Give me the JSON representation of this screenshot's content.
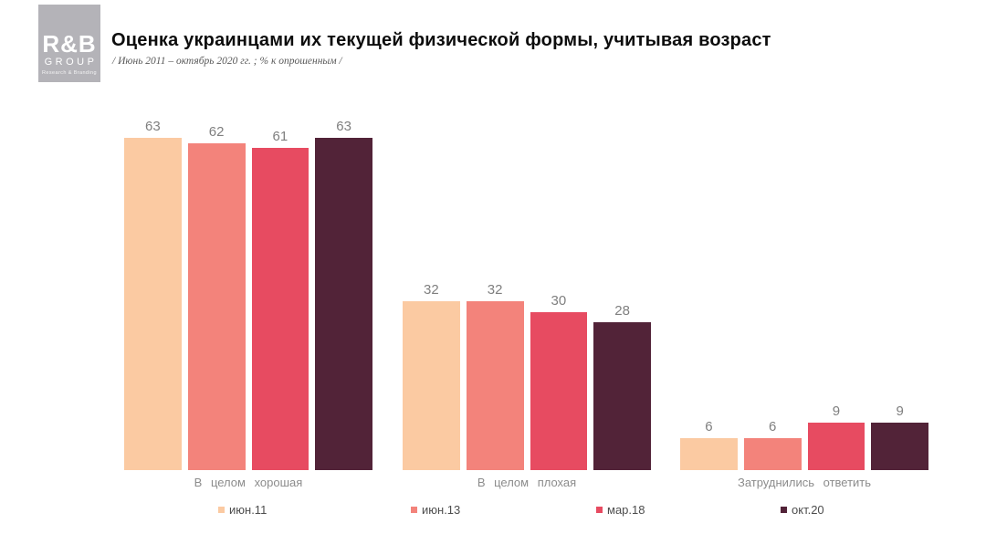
{
  "header": {
    "logo": {
      "line1": "R&B",
      "line2": "GROUP",
      "line3": "Research & Branding",
      "bg_color": "#b4b3b8"
    },
    "title": "Оценка украинцами их текущей физической формы, учитывая возраст",
    "subtitle": "/ Июнь 2011 – октябрь 2020 гг. ; % к опрошенным /"
  },
  "chart_data": {
    "type": "bar",
    "title": "Оценка украинцами их текущей физической формы, учитывая возраст",
    "subtitle": "/ Июнь 2011 – октябрь 2020 гг. ; % к опрошенным /",
    "categories": [
      "В целом хорошая",
      "В целом плохая",
      "Затруднились ответить"
    ],
    "series": [
      {
        "name": "июн.11",
        "color": "#fbcaa2",
        "values": [
          63,
          32,
          6
        ]
      },
      {
        "name": "июн.13",
        "color": "#f3837b",
        "values": [
          62,
          32,
          6
        ]
      },
      {
        "name": "мар.18",
        "color": "#e74b61",
        "values": [
          61,
          30,
          9
        ]
      },
      {
        "name": "окт.20",
        "color": "#522338",
        "values": [
          63,
          28,
          9
        ]
      }
    ],
    "ylim": [
      0,
      70
    ],
    "grid": false,
    "axes_visible": false,
    "value_labels_shown": true,
    "value_label_color": "#7f7f7f",
    "legend_position": "bottom"
  }
}
